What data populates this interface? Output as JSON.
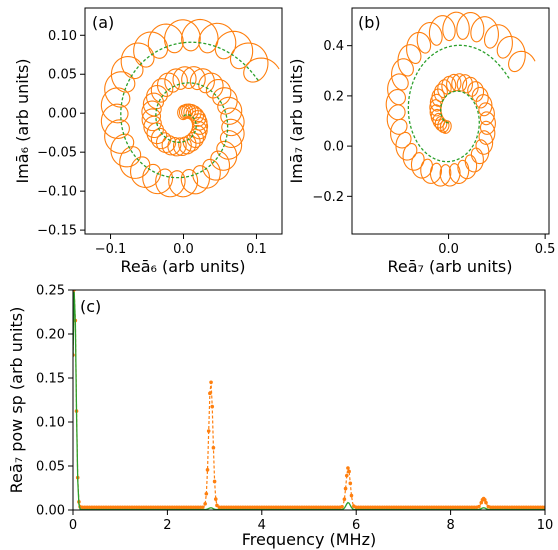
{
  "colors": {
    "orange": "#ff7f0e",
    "green": "#2ca02c",
    "axis": "#000000"
  },
  "chart_data": [
    {
      "type": "line",
      "panel_label": "(a)",
      "xlabel": "Reā₆ (arb units)",
      "ylabel": "Imā₆ (arb units)",
      "xlim": [
        -0.135,
        0.135
      ],
      "ylim": [
        -0.155,
        0.135
      ],
      "xticks": [
        -0.1,
        0.0,
        0.1
      ],
      "xtick_labels": [
        "−0.1",
        "0.0",
        "0.1"
      ],
      "yticks": [
        0.1,
        0.05,
        0.0,
        -0.05,
        -0.1,
        -0.15
      ],
      "ytick_labels": [
        "0.10",
        "0.05",
        "0.00",
        "−0.05",
        "−0.10",
        "−0.15"
      ],
      "series": [
        {
          "style": "solid",
          "color": "orange",
          "description_of_shape": "inward spiral with small looped epicycles",
          "spiral": {
            "center": [
              0.0,
              -0.01
            ],
            "r_start": 0.125,
            "r_end": 0.01,
            "turns": 2.2,
            "loops": 62,
            "loop_radius": 0.022
          }
        },
        {
          "style": "dashed",
          "color": "green",
          "spiral": {
            "center": [
              0.0,
              -0.01
            ],
            "r_start": 0.115,
            "r_end": 0.005,
            "turns": 2.2
          }
        }
      ]
    },
    {
      "type": "line",
      "panel_label": "(b)",
      "xlabel": "Reā₇ (arb units)",
      "ylabel": "Imā₇ (arb units)",
      "xlim": [
        -0.5,
        0.52
      ],
      "ylim": [
        -0.35,
        0.55
      ],
      "xticks": [
        0.0,
        0.5
      ],
      "xtick_labels": [
        "0.0",
        "0.5"
      ],
      "yticks": [
        0.4,
        0.2,
        0.0,
        -0.2
      ],
      "ytick_labels": [
        "0.4",
        "0.2",
        "0.0",
        "−0.2"
      ],
      "series": [
        {
          "style": "solid",
          "color": "orange",
          "spiral": {
            "center": [
              0.02,
              0.12
            ],
            "r_start": 0.42,
            "r_end": 0.05,
            "turns": 1.6,
            "loops": 48,
            "loop_radius": 0.06
          }
        },
        {
          "style": "dashed",
          "color": "green",
          "spiral": {
            "center": [
              0.02,
              0.12
            ],
            "r_start": 0.33,
            "r_end": 0.03,
            "turns": 1.6
          }
        }
      ]
    },
    {
      "type": "line",
      "panel_label": "(c)",
      "xlabel": "Frequency (MHz)",
      "ylabel": "Reā₇ pow sp (arb units)",
      "xlim": [
        0,
        10
      ],
      "ylim": [
        0,
        0.25
      ],
      "xticks": [
        0,
        2,
        4,
        6,
        8,
        10
      ],
      "xtick_labels": [
        "0",
        "2",
        "4",
        "6",
        "8",
        "10"
      ],
      "yticks": [
        0.0,
        0.05,
        0.1,
        0.15,
        0.2,
        0.25
      ],
      "ytick_labels": [
        "0.00",
        "0.05",
        "0.10",
        "0.15",
        "0.20",
        "0.25"
      ],
      "series": [
        {
          "style": "dashed-markers",
          "color": "orange",
          "peaks": [
            {
              "x": 0.03,
              "y": 0.25
            },
            {
              "x": 2.92,
              "y": 0.143
            },
            {
              "x": 5.83,
              "y": 0.045
            },
            {
              "x": 8.7,
              "y": 0.01
            }
          ]
        },
        {
          "style": "solid",
          "color": "green",
          "peaks": [
            {
              "x": 0.03,
              "y": 0.25
            },
            {
              "x": 2.92,
              "y": 0.002
            },
            {
              "x": 5.83,
              "y": 0.008
            },
            {
              "x": 8.7,
              "y": 0.002
            }
          ]
        }
      ]
    }
  ]
}
